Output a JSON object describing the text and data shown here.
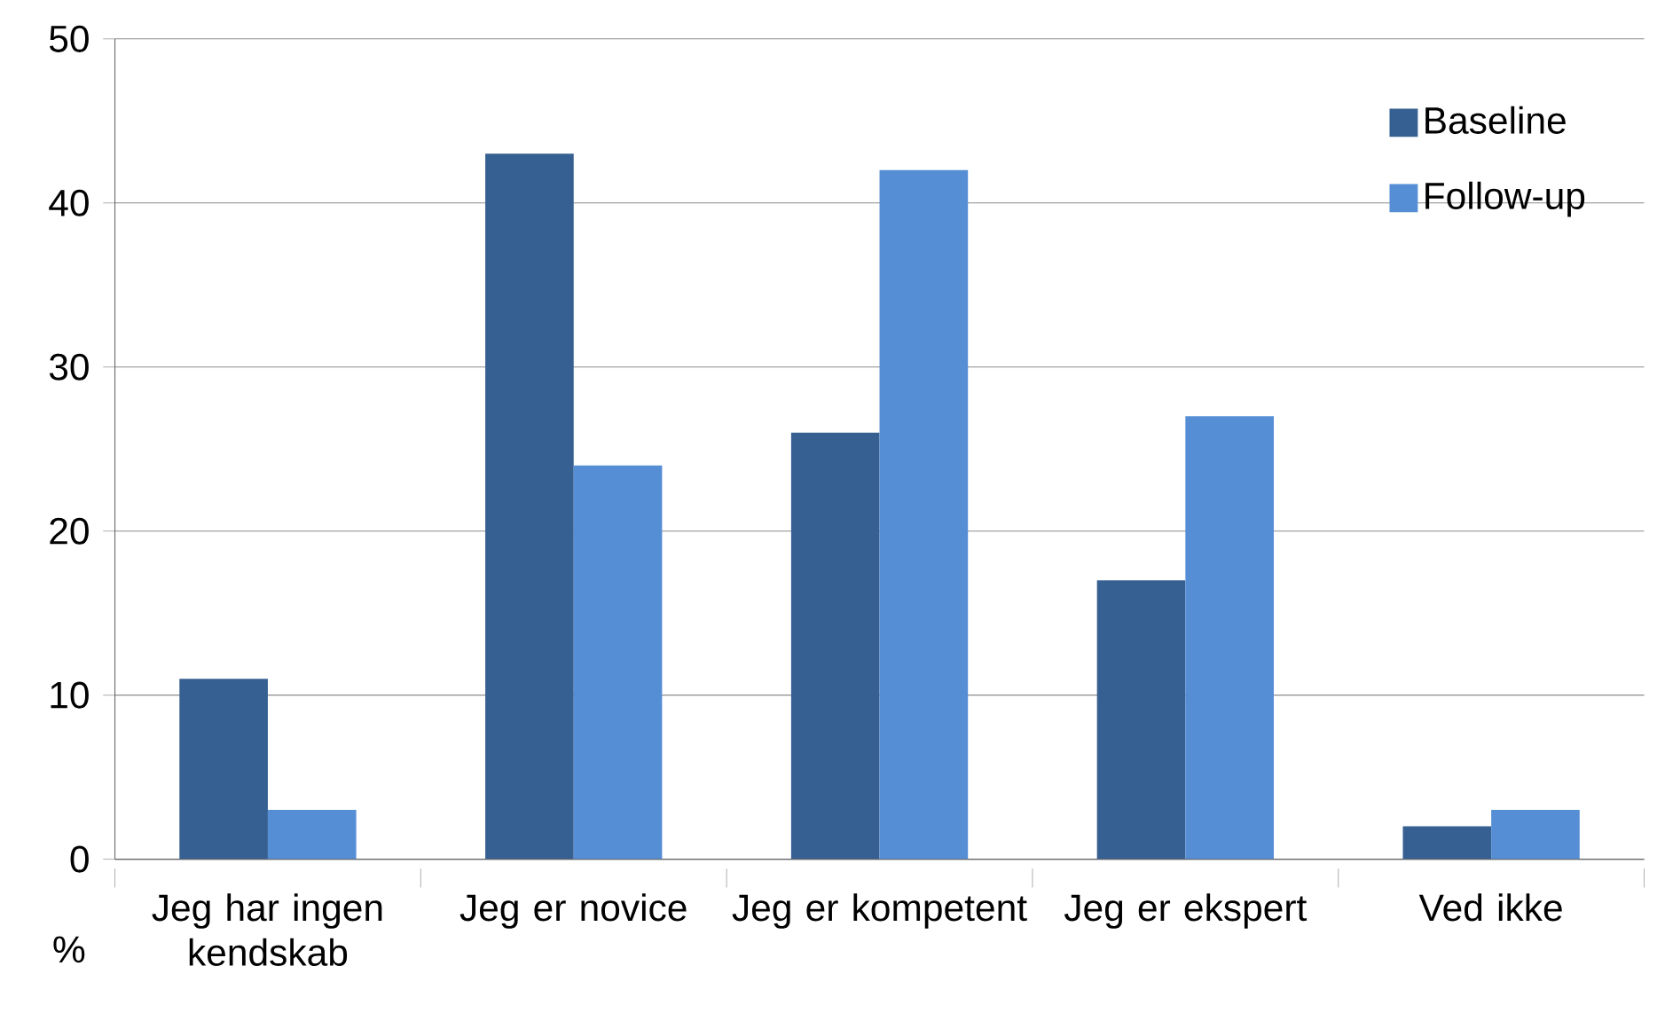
{
  "chart_data": {
    "type": "bar",
    "ylabel": "%",
    "categories": [
      "Jeg har ingen kendskab",
      "Jeg er novice",
      "Jeg er kompetent",
      "Jeg er ekspert",
      "Ved ikke"
    ],
    "series": [
      {
        "name": "Baseline",
        "color": "#376092",
        "values": [
          11,
          43,
          26,
          17,
          2
        ]
      },
      {
        "name": "Follow-up",
        "color": "#558ed5",
        "values": [
          3,
          24,
          42,
          27,
          3
        ]
      }
    ],
    "ylim": [
      0,
      50
    ],
    "yticks": [
      0,
      10,
      20,
      30,
      40,
      50
    ],
    "grid": "y",
    "legend": "top right"
  }
}
